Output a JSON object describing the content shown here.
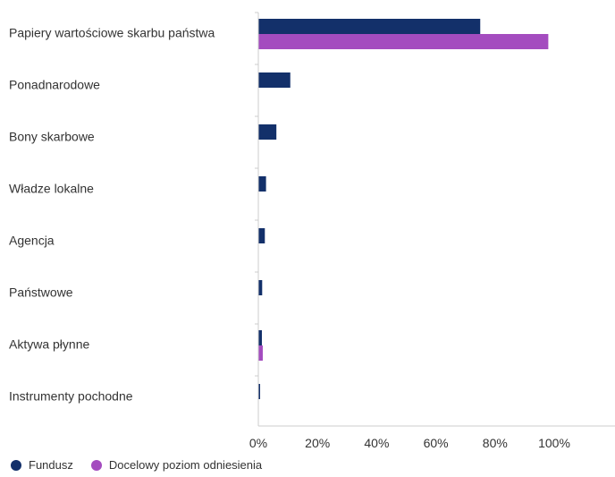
{
  "chart_data": {
    "type": "bar",
    "orientation": "horizontal",
    "categories": [
      "Papiery wartościowe skarbu państwa",
      "Ponadnarodowe",
      "Bony skarbowe",
      "Władze lokalne",
      "Agencja",
      "Państwowe",
      "Aktywa płynne",
      "Instrumenty pochodne"
    ],
    "series": [
      {
        "name": "Fundusz",
        "color": "#13306a",
        "values": [
          75.0,
          10.8,
          6.1,
          2.6,
          2.2,
          1.3,
          1.2,
          0.6
        ]
      },
      {
        "name": "Docelowy poziom odniesienia",
        "color": "#a44cbf",
        "values": [
          98.0,
          0,
          0,
          0,
          0,
          0,
          1.5,
          0
        ]
      }
    ],
    "xlim": [
      0,
      100
    ],
    "xticks": [
      "0%",
      "20%",
      "40%",
      "60%",
      "80%",
      "100%"
    ],
    "grid": false,
    "legend_position": "bottom-left"
  }
}
